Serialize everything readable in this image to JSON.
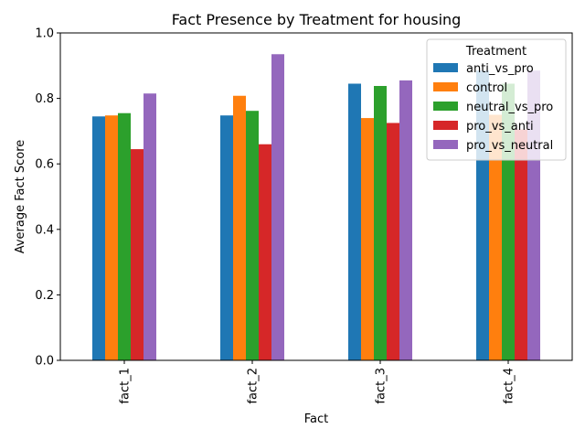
{
  "chart_data": {
    "type": "bar",
    "title": "Fact Presence by Treatment for housing",
    "xlabel": "Fact",
    "ylabel": "Average Fact Score",
    "categories": [
      "fact_1",
      "fact_2",
      "fact_3",
      "fact_4"
    ],
    "ylim": [
      0,
      1.0
    ],
    "yticks": [
      "0.0",
      "0.2",
      "0.4",
      "0.6",
      "0.8",
      "1.0"
    ],
    "legend_title": "Treatment",
    "legend_position": "top-right",
    "grid": false,
    "series": [
      {
        "name": "anti_vs_pro",
        "color": "#1f77b4",
        "values": [
          0.745,
          0.748,
          0.845,
          0.885
        ]
      },
      {
        "name": "control",
        "color": "#ff7f0e",
        "values": [
          0.748,
          0.808,
          0.74,
          0.75
        ]
      },
      {
        "name": "neutral_vs_pro",
        "color": "#2ca02c",
        "values": [
          0.755,
          0.762,
          0.838,
          0.845
        ]
      },
      {
        "name": "pro_vs_anti",
        "color": "#d62728",
        "values": [
          0.645,
          0.66,
          0.725,
          0.705
        ]
      },
      {
        "name": "pro_vs_neutral",
        "color": "#9467bd",
        "values": [
          0.815,
          0.935,
          0.855,
          0.885
        ]
      }
    ]
  }
}
